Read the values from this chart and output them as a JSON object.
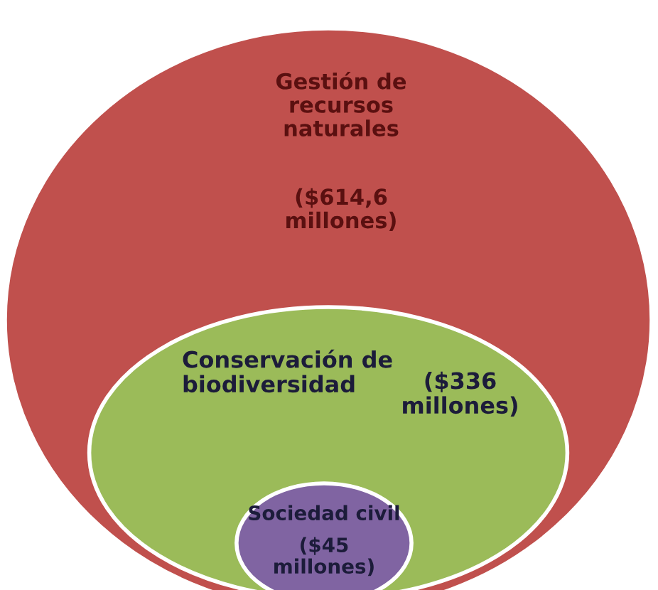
{
  "chart_data": {
    "type": "other",
    "categories": [
      "Gestión de\nrecursos\nnaturales",
      "Conservación de\nbiodiversidad",
      "Sociedad civil"
    ],
    "values": [
      614.6,
      336,
      45
    ],
    "value_labels": [
      "($614,6\nmillones)",
      "($336\nmillones)",
      "($45\nmillones)"
    ],
    "colors": [
      "#c0504d",
      "#9bbb59",
      "#8064a2"
    ]
  }
}
